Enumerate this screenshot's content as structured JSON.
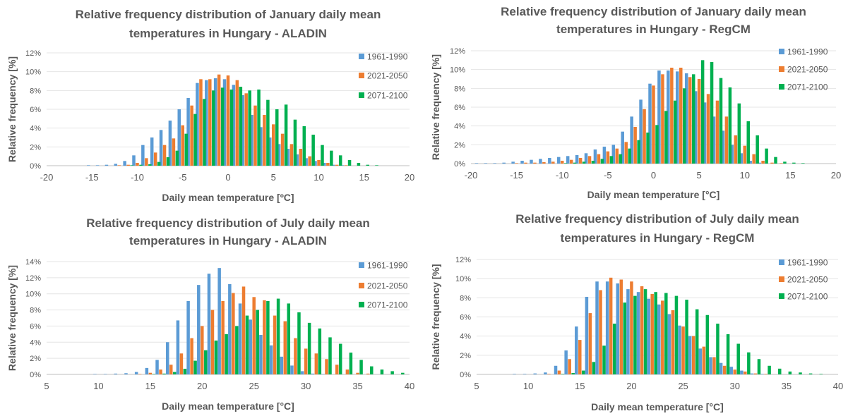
{
  "chart_data": [
    {
      "type": "bar",
      "title": "Relative frequency distribution of January daily mean temperatures in Hungary - ALADIN",
      "title_lines": [
        "Relative frequency distribution of January daily mean",
        "temperatures in Hungary - ALADIN"
      ],
      "xlabel": "Daily mean temperature [ºC]",
      "ylabel": "Relative frequency [%]",
      "xlim": [
        -20,
        20
      ],
      "ylim": [
        0,
        12
      ],
      "x_ticks": [
        -20,
        -15,
        -10,
        -5,
        0,
        5,
        10,
        15,
        20
      ],
      "y_ticks": [
        "0%",
        "2%",
        "4%",
        "6%",
        "8%",
        "10%",
        "12%"
      ],
      "legend_position": "right",
      "x": [
        -19,
        -18,
        -17,
        -16,
        -15,
        -14,
        -13,
        -12,
        -11,
        -10,
        -9,
        -8,
        -7,
        -6,
        -5,
        -4,
        -3,
        -2,
        -1,
        0,
        1,
        2,
        3,
        4,
        5,
        6,
        7,
        8,
        9,
        10,
        11,
        12,
        13,
        14,
        15,
        16,
        17,
        18,
        19
      ],
      "series": [
        {
          "name": "1961-1990",
          "color": "#5B9BD5",
          "values": [
            0,
            0,
            0,
            0,
            0.05,
            0.05,
            0.1,
            0.2,
            0.5,
            1.1,
            2.2,
            3.0,
            3.8,
            4.8,
            6.0,
            7.2,
            8.8,
            9.1,
            9.3,
            9.2,
            8.6,
            7.5,
            5.4,
            4.1,
            3.0,
            2.3,
            1.8,
            1.2,
            0.8,
            0.5,
            0.3,
            0.1,
            0.05,
            0,
            0,
            0,
            0,
            0,
            0
          ]
        },
        {
          "name": "2021-2050",
          "color": "#ED7D31",
          "values": [
            0,
            0,
            0,
            0,
            0,
            0,
            0,
            0.05,
            0.1,
            0.3,
            0.8,
            1.4,
            2.2,
            2.9,
            4.3,
            6.4,
            9.2,
            9.2,
            9.7,
            9.6,
            9.1,
            7.7,
            6.4,
            5.4,
            4.4,
            3.4,
            2.3,
            1.8,
            1.0,
            0.6,
            0.3,
            0.1,
            0.05,
            0,
            0,
            0,
            0,
            0,
            0
          ]
        },
        {
          "name": "2071-2100",
          "color": "#00B050",
          "values": [
            0,
            0,
            0,
            0,
            0,
            0,
            0,
            0,
            0.05,
            0.1,
            0.15,
            0.4,
            0.9,
            1.6,
            3.4,
            5.5,
            7.1,
            8.0,
            8.3,
            8.1,
            8.4,
            8.0,
            8.1,
            7.0,
            6.0,
            6.5,
            4.9,
            4.2,
            3.3,
            2.2,
            1.6,
            1.1,
            0.6,
            0.3,
            0.1,
            0.05,
            0,
            0,
            0
          ]
        }
      ]
    },
    {
      "type": "bar",
      "title": "Relative frequency distribution of January daily mean temperatures in Hungary - RegCM",
      "title_lines": [
        "Relative frequency distribution of January daily mean",
        "temperatures in Hungary - RegCM"
      ],
      "xlabel": "Daily mean temperature [°C]",
      "ylabel": "Relative frequency [%]",
      "xlim": [
        -20,
        20
      ],
      "ylim": [
        0,
        12
      ],
      "x_ticks": [
        -20,
        -15,
        -10,
        -5,
        0,
        5,
        10,
        15,
        20
      ],
      "y_ticks": [
        "0%",
        "2%",
        "4%",
        "6%",
        "8%",
        "10%",
        "12%"
      ],
      "legend_position": "right",
      "x": [
        -19,
        -18,
        -17,
        -16,
        -15,
        -14,
        -13,
        -12,
        -11,
        -10,
        -9,
        -8,
        -7,
        -6,
        -5,
        -4,
        -3,
        -2,
        -1,
        0,
        1,
        2,
        3,
        4,
        5,
        6,
        7,
        8,
        9,
        10,
        11,
        12,
        13,
        14,
        15,
        16,
        17,
        18,
        19
      ],
      "series": [
        {
          "name": "1961-1990",
          "color": "#5B9BD5",
          "values": [
            0.05,
            0.05,
            0.05,
            0.1,
            0.2,
            0.3,
            0.4,
            0.5,
            0.6,
            0.7,
            0.8,
            0.9,
            1.1,
            1.5,
            1.8,
            2.0,
            3.4,
            5.0,
            6.8,
            8.5,
            9.9,
            9.9,
            9.8,
            9.6,
            7.7,
            6.5,
            5.0,
            3.5,
            2.0,
            1.1,
            0.3,
            0.1,
            0,
            0,
            0,
            0,
            0,
            0,
            0
          ]
        },
        {
          "name": "2021-2050",
          "color": "#ED7D31",
          "values": [
            0,
            0,
            0,
            0,
            0.05,
            0.1,
            0.1,
            0.15,
            0.2,
            0.3,
            0.4,
            0.6,
            0.8,
            1.0,
            1.3,
            1.6,
            2.3,
            3.9,
            5.8,
            8.3,
            9.5,
            10.2,
            10.2,
            9.2,
            9.0,
            7.4,
            6.7,
            5.0,
            3.0,
            1.9,
            1.0,
            0.3,
            0.1,
            0.05,
            0,
            0,
            0,
            0,
            0
          ]
        },
        {
          "name": "2071-2100",
          "color": "#00B050",
          "values": [
            0,
            0,
            0,
            0,
            0,
            0,
            0,
            0,
            0,
            0.05,
            0.1,
            0.2,
            0.3,
            0.5,
            0.8,
            1.0,
            1.6,
            2.5,
            3.3,
            4.1,
            5.6,
            6.7,
            8.0,
            9.5,
            11.0,
            10.8,
            9.1,
            8.1,
            6.4,
            4.5,
            3.0,
            1.6,
            0.7,
            0.2,
            0.1,
            0.05,
            0,
            0,
            0
          ]
        }
      ]
    },
    {
      "type": "bar",
      "title": "Relative frequency distribution of July daily mean temperatures in Hungary - ALADIN",
      "title_lines": [
        "Relative frequency distribution of July daily mean",
        "temperatures in Hungary - ALADIN"
      ],
      "xlabel": "Daily mean temperature [°C]",
      "ylabel": "Relative frequency [%]",
      "xlim": [
        5,
        40
      ],
      "ylim": [
        0,
        14
      ],
      "x_ticks": [
        5,
        10,
        15,
        20,
        25,
        30,
        35,
        40
      ],
      "y_ticks": [
        "0%",
        "2%",
        "4%",
        "6%",
        "8%",
        "10%",
        "12%",
        "14%"
      ],
      "legend_position": "right",
      "x": [
        6,
        7,
        8,
        9,
        10,
        11,
        12,
        13,
        14,
        15,
        16,
        17,
        18,
        19,
        20,
        21,
        22,
        23,
        24,
        25,
        26,
        27,
        28,
        29,
        30,
        31,
        32,
        33,
        34,
        35,
        36,
        37,
        38,
        39
      ],
      "series": [
        {
          "name": "1961-1990",
          "color": "#5B9BD5",
          "values": [
            0,
            0,
            0,
            0,
            0.05,
            0.05,
            0.1,
            0.15,
            0.3,
            0.8,
            1.8,
            4.0,
            6.7,
            9.1,
            11.1,
            12.5,
            13.2,
            11.2,
            8.8,
            6.8,
            4.9,
            3.6,
            2.2,
            1.1,
            0.4,
            0.1,
            0.05,
            0,
            0,
            0,
            0,
            0,
            0,
            0
          ]
        },
        {
          "name": "2021-2050",
          "color": "#ED7D31",
          "values": [
            0,
            0,
            0,
            0,
            0,
            0,
            0,
            0,
            0.05,
            0.2,
            0.6,
            1.2,
            2.6,
            4.5,
            6.0,
            8.0,
            9.1,
            10.1,
            10.9,
            9.6,
            9.2,
            7.3,
            6.6,
            4.5,
            3.2,
            2.6,
            1.9,
            1.2,
            0.6,
            0.2,
            0.1,
            0,
            0,
            0
          ]
        },
        {
          "name": "2071-2100",
          "color": "#00B050",
          "values": [
            0,
            0,
            0,
            0,
            0,
            0,
            0,
            0,
            0,
            0.05,
            0.1,
            0.3,
            0.7,
            1.7,
            3.0,
            4.2,
            5.0,
            6.0,
            7.3,
            8.0,
            9.1,
            9.4,
            8.8,
            7.7,
            6.4,
            5.7,
            4.6,
            3.8,
            2.7,
            1.8,
            1.0,
            0.6,
            0.4,
            0.2
          ]
        }
      ]
    },
    {
      "type": "bar",
      "title": "Relative frequency distribution of July daily mean temperatures in Hungary - RegCM",
      "title_lines": [
        "Relative frequency distribution of July daily mean",
        "temperatures in Hungary - RegCM"
      ],
      "xlabel": "Daily mean temperature [°C]",
      "ylabel": "Relative frequency [%]",
      "xlim": [
        5,
        40
      ],
      "ylim": [
        0,
        12
      ],
      "x_ticks": [
        5,
        10,
        15,
        20,
        25,
        30,
        35,
        40
      ],
      "y_ticks": [
        "0%",
        "2%",
        "4%",
        "6%",
        "8%",
        "10%",
        "12%"
      ],
      "legend_position": "top-right",
      "x": [
        6,
        7,
        8,
        9,
        10,
        11,
        12,
        13,
        14,
        15,
        16,
        17,
        18,
        19,
        20,
        21,
        22,
        23,
        24,
        25,
        26,
        27,
        28,
        29,
        30,
        31,
        32,
        33,
        34,
        35,
        36,
        37,
        38,
        39
      ],
      "series": [
        {
          "name": "1961-1990",
          "color": "#5B9BD5",
          "values": [
            0,
            0,
            0,
            0.05,
            0.05,
            0.1,
            0.2,
            0.9,
            2.5,
            5.0,
            8.1,
            9.7,
            9.7,
            9.5,
            8.9,
            8.6,
            7.9,
            7.3,
            6.3,
            5.1,
            4.0,
            2.7,
            1.8,
            1.2,
            0.8,
            0.4,
            0.1,
            0.05,
            0,
            0,
            0,
            0,
            0,
            0
          ]
        },
        {
          "name": "2021-2050",
          "color": "#ED7D31",
          "values": [
            0,
            0,
            0,
            0,
            0,
            0,
            0.05,
            0.4,
            1.6,
            3.6,
            6.4,
            8.8,
            10.1,
            9.9,
            9.7,
            9.2,
            8.4,
            7.7,
            6.7,
            5.0,
            4.0,
            2.9,
            1.8,
            0.9,
            0.5,
            0.3,
            0.1,
            0.05,
            0,
            0,
            0,
            0,
            0,
            0
          ]
        },
        {
          "name": "2071-2100",
          "color": "#00B050",
          "values": [
            0,
            0,
            0,
            0,
            0,
            0,
            0,
            0.05,
            0.15,
            0.4,
            1.3,
            3.0,
            5.3,
            7.5,
            8.2,
            8.9,
            8.6,
            8.5,
            8.2,
            7.8,
            6.8,
            6.2,
            5.3,
            4.2,
            3.2,
            2.3,
            1.6,
            0.9,
            0.6,
            0.3,
            0.2,
            0.1,
            0.05,
            0
          ]
        }
      ]
    }
  ]
}
